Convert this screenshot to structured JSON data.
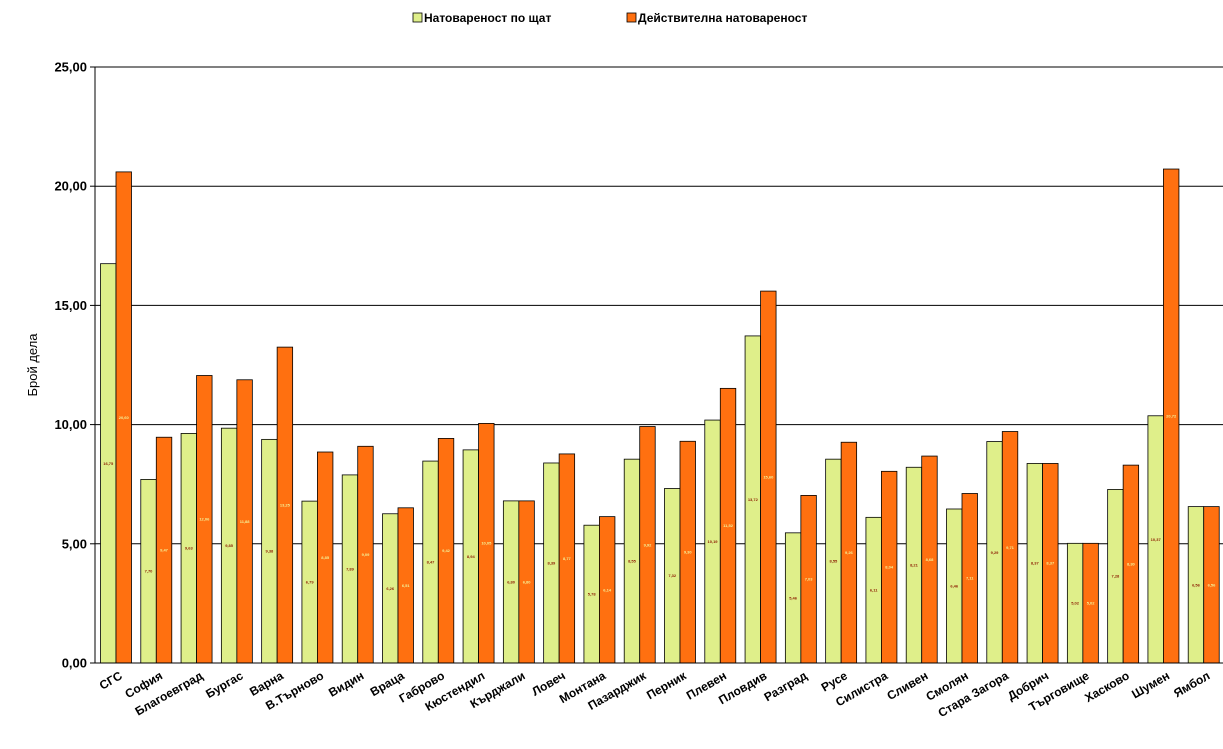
{
  "chart_data": {
    "type": "bar",
    "ylabel": "Брой дела",
    "xlabel": "",
    "ylim": [
      0,
      25
    ],
    "yticks": [
      "0,00",
      "5,00",
      "10,00",
      "15,00",
      "20,00",
      "25,00"
    ],
    "grid": true,
    "legend_position": "top",
    "categories": [
      "СГС",
      "София",
      "Благоевград",
      "Бургас",
      "Варна",
      "В.Търново",
      "Видин",
      "Враца",
      "Габрово",
      "Кюстендил",
      "Кърджали",
      "Ловеч",
      "Монтана",
      "Пазарджик",
      "Перник",
      "Плевен",
      "Пловдив",
      "Разград",
      "Русе",
      "Силистра",
      "Сливен",
      "Смолян",
      "Стара Загора",
      "Добрич",
      "Търговище",
      "Хасково",
      "Шумен",
      "Ямбол"
    ],
    "series": [
      {
        "name": "Натовареност по щат",
        "color": "#dfef8a",
        "values": [
          16.75,
          7.7,
          9.63,
          9.85,
          9.38,
          6.79,
          7.89,
          6.26,
          8.47,
          8.94,
          6.8,
          8.39,
          5.78,
          8.55,
          7.32,
          10.19,
          13.72,
          5.46,
          8.55,
          6.11,
          8.21,
          6.46,
          9.29,
          8.37,
          5.02,
          7.28,
          10.37,
          6.56
        ]
      },
      {
        "name": "Действителна натовареност",
        "color": "#ff7010",
        "values": [
          20.6,
          9.47,
          12.06,
          11.88,
          13.25,
          8.85,
          9.09,
          6.51,
          9.42,
          10.05,
          6.8,
          8.77,
          6.14,
          9.92,
          9.3,
          11.52,
          15.6,
          7.03,
          9.26,
          8.04,
          8.68,
          7.11,
          9.71,
          8.37,
          5.02,
          8.3,
          20.72,
          6.56
        ]
      }
    ]
  }
}
